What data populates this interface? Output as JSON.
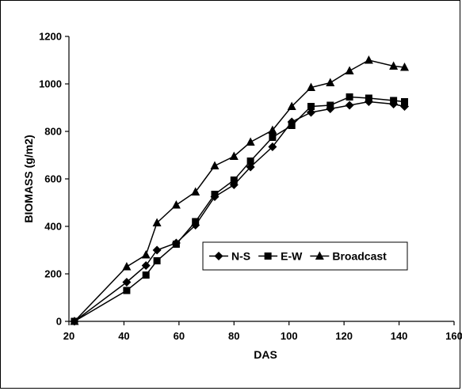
{
  "chart_data": {
    "type": "line",
    "xlabel": "DAS",
    "ylabel": "BIOMASS (g/m2)",
    "xlim": [
      20,
      160
    ],
    "ylim": [
      0,
      1200
    ],
    "xticks": [
      "20",
      "40",
      "60",
      "80",
      "100",
      "120",
      "140",
      "160"
    ],
    "yticks": [
      "0",
      "200",
      "400",
      "600",
      "800",
      "1000",
      "1200"
    ],
    "grid": false,
    "legend_position": "lower-right",
    "series": [
      {
        "name": "N-S",
        "marker": "diamond",
        "color": "#000000",
        "x": [
          22,
          41,
          48,
          52,
          59,
          66,
          73,
          80,
          86,
          94,
          101,
          108,
          115,
          122,
          129,
          138,
          142
        ],
        "y": [
          0,
          165,
          235,
          300,
          330,
          405,
          525,
          575,
          650,
          735,
          840,
          880,
          895,
          910,
          925,
          915,
          905
        ]
      },
      {
        "name": "E-W",
        "marker": "square",
        "color": "#000000",
        "x": [
          22,
          41,
          48,
          52,
          59,
          66,
          73,
          80,
          86,
          94,
          101,
          108,
          115,
          122,
          129,
          138,
          142
        ],
        "y": [
          0,
          130,
          195,
          255,
          325,
          420,
          535,
          595,
          675,
          775,
          825,
          905,
          910,
          945,
          940,
          930,
          925
        ]
      },
      {
        "name": "Broadcast",
        "marker": "triangle",
        "color": "#000000",
        "x": [
          22,
          41,
          48,
          52,
          59,
          66,
          73,
          80,
          86,
          94,
          101,
          108,
          115,
          122,
          129,
          138,
          142
        ],
        "y": [
          0,
          230,
          280,
          415,
          490,
          545,
          655,
          695,
          755,
          805,
          905,
          985,
          1005,
          1055,
          1100,
          1075,
          1070
        ]
      }
    ]
  }
}
